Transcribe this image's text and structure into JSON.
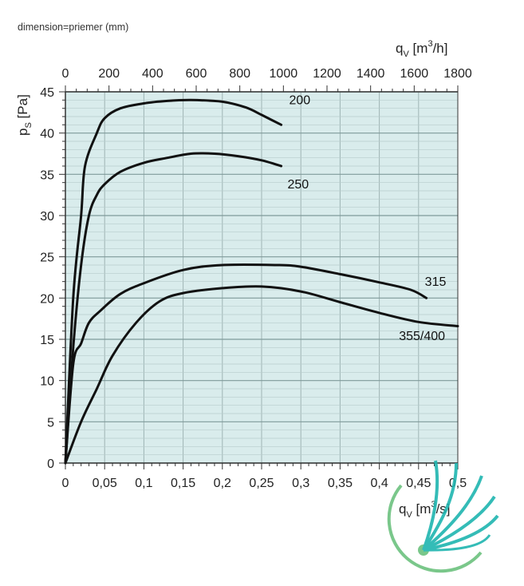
{
  "header": {
    "note": "dimension=priemer (mm)"
  },
  "chart_data": {
    "type": "line",
    "title": "",
    "xlabel": {
      "base": "q",
      "sub": "V",
      "unit": "[m",
      "sup": "3",
      "unit_end": "/s]"
    },
    "x2label": {
      "base": "q",
      "sub": "V",
      "unit": "[m",
      "sup": "3",
      "unit_end": "/h]"
    },
    "ylabel": {
      "base": "p",
      "sub": "S",
      "unit": "[Pa]"
    },
    "xlim": [
      0,
      0.5
    ],
    "ylim": [
      0,
      45
    ],
    "x2lim": [
      0,
      1800
    ],
    "x_ticks": [
      0,
      0.05,
      0.1,
      0.15,
      0.2,
      0.25,
      0.3,
      0.35,
      0.4,
      0.45,
      0.5
    ],
    "x_tick_labels": [
      "0",
      "0,05",
      "0,1",
      "0,15",
      "0,2",
      "0,25",
      "0,3",
      "0,35",
      "0,4",
      "0,45",
      "0,5"
    ],
    "x2_ticks": [
      0,
      200,
      400,
      600,
      800,
      1000,
      1200,
      1400,
      1600,
      1800
    ],
    "x2_tick_labels": [
      "0",
      "200",
      "400",
      "600",
      "800",
      "1000",
      "1200",
      "1400",
      "1600",
      "1800"
    ],
    "y_ticks": [
      0,
      5,
      10,
      15,
      20,
      25,
      30,
      35,
      40,
      45
    ],
    "y_tick_labels": [
      "0",
      "5",
      "10",
      "15",
      "20",
      "25",
      "30",
      "35",
      "40",
      "45"
    ],
    "grid": true,
    "minor_ticks": true,
    "plot_background": "#d9ecec",
    "line_color": "#111111",
    "series": [
      {
        "name": "200",
        "points": [
          [
            0,
            0
          ],
          [
            0.01,
            20
          ],
          [
            0.02,
            30
          ],
          [
            0.025,
            36
          ],
          [
            0.04,
            40
          ],
          [
            0.05,
            41.8
          ],
          [
            0.07,
            43
          ],
          [
            0.1,
            43.6
          ],
          [
            0.13,
            43.9
          ],
          [
            0.16,
            44
          ],
          [
            0.2,
            43.8
          ],
          [
            0.23,
            43.1
          ],
          [
            0.25,
            42.2
          ],
          [
            0.275,
            41
          ]
        ]
      },
      {
        "name": "250",
        "points": [
          [
            0,
            0
          ],
          [
            0.01,
            14
          ],
          [
            0.02,
            24
          ],
          [
            0.03,
            30
          ],
          [
            0.04,
            32.5
          ],
          [
            0.05,
            33.8
          ],
          [
            0.07,
            35.3
          ],
          [
            0.1,
            36.4
          ],
          [
            0.13,
            37
          ],
          [
            0.16,
            37.5
          ],
          [
            0.19,
            37.5
          ],
          [
            0.22,
            37.2
          ],
          [
            0.25,
            36.7
          ],
          [
            0.275,
            36
          ]
        ]
      },
      {
        "name": "315",
        "points": [
          [
            0,
            0
          ],
          [
            0.01,
            12
          ],
          [
            0.02,
            14.5
          ],
          [
            0.03,
            17
          ],
          [
            0.045,
            18.5
          ],
          [
            0.07,
            20.5
          ],
          [
            0.1,
            21.8
          ],
          [
            0.15,
            23.4
          ],
          [
            0.2,
            24
          ],
          [
            0.27,
            24
          ],
          [
            0.3,
            23.8
          ],
          [
            0.35,
            22.9
          ],
          [
            0.4,
            21.9
          ],
          [
            0.44,
            21
          ],
          [
            0.46,
            20
          ]
        ]
      },
      {
        "name": "355/400",
        "points": [
          [
            0,
            0
          ],
          [
            0.02,
            5
          ],
          [
            0.04,
            9
          ],
          [
            0.06,
            13
          ],
          [
            0.09,
            17
          ],
          [
            0.12,
            19.6
          ],
          [
            0.15,
            20.6
          ],
          [
            0.2,
            21.2
          ],
          [
            0.25,
            21.4
          ],
          [
            0.3,
            20.8
          ],
          [
            0.35,
            19.5
          ],
          [
            0.4,
            18.2
          ],
          [
            0.45,
            17.1
          ],
          [
            0.5,
            16.6
          ]
        ]
      }
    ],
    "curve_labels": [
      {
        "text": "200",
        "x": 0.285,
        "y": 43.5
      },
      {
        "text": "250",
        "x": 0.283,
        "y": 33.3
      },
      {
        "text": "315",
        "x": 0.458,
        "y": 21.5
      },
      {
        "text": "355/400",
        "x": 0.425,
        "y": 14.9
      }
    ]
  },
  "logo": {
    "icon": "fan-swirl-logo",
    "colors": [
      "#1fb5b0",
      "#6cc17e"
    ]
  }
}
